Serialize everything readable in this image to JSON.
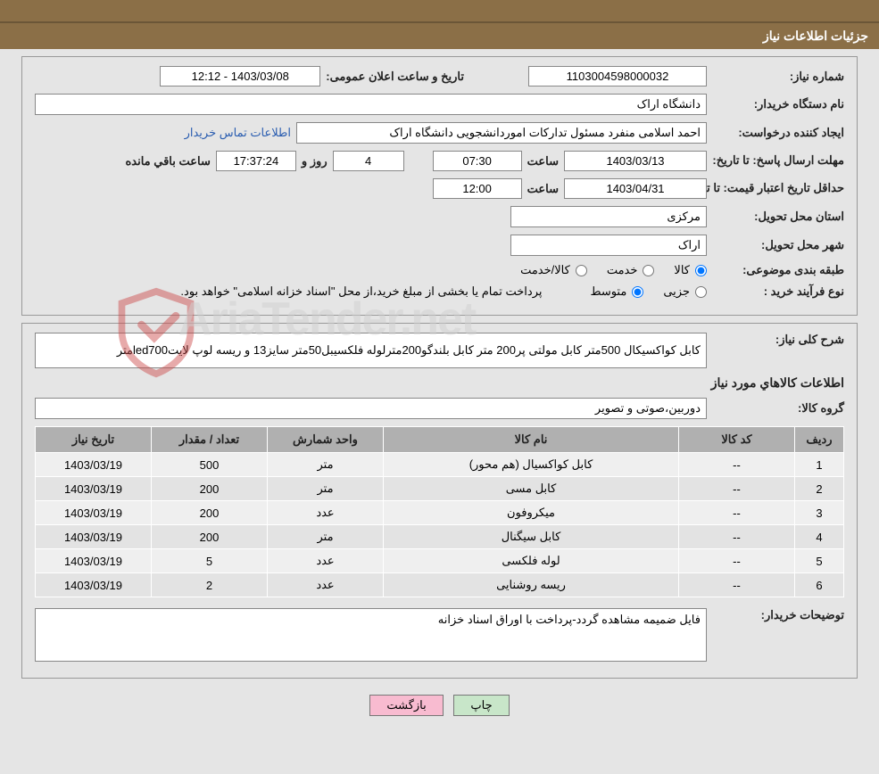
{
  "header": {
    "title": "جزئیات اطلاعات نیاز"
  },
  "info": {
    "need_number_label": "شماره نیاز:",
    "need_number": "1103004598000032",
    "announce_datetime_label": "تاریخ و ساعت اعلان عمومی:",
    "announce_datetime": "1403/03/08 - 12:12",
    "buyer_org_label": "نام دستگاه خریدار:",
    "buyer_org": "دانشگاه اراک",
    "requester_label": "ایجاد کننده درخواست:",
    "requester": "احمد  اسلامی منفرد مسئول تدارکات اموردانشجویی دانشگاه اراک",
    "contact_link": "اطلاعات تماس خریدار",
    "deadline_label": "مهلت ارسال پاسخ: تا تاریخ:",
    "deadline_date": "1403/03/13",
    "time_word": "ساعت",
    "deadline_time": "07:30",
    "days_count": "4",
    "days_and_word": "روز و",
    "countdown": "17:37:24",
    "remaining_word": "ساعت باقي مانده",
    "validity_label": "حداقل تاریخ اعتبار قیمت: تا تاریخ:",
    "validity_date": "1403/04/31",
    "validity_time": "12:00",
    "province_label": "استان محل تحویل:",
    "province": "مرکزی",
    "city_label": "شهر محل تحویل:",
    "city": "اراک",
    "category_label": "طبقه بندی موضوعی:",
    "cat_goods": "کالا",
    "cat_service": "خدمت",
    "cat_goods_service": "کالا/خدمت",
    "process_type_label": "نوع فرآیند خرید :",
    "proc_partial": "جزیی",
    "proc_medium": "متوسط",
    "process_note": "پرداخت تمام یا بخشی از مبلغ خرید،از محل \"اسناد خزانه اسلامی\" خواهد بود."
  },
  "detail": {
    "desc_label": "شرح کلی نیاز:",
    "desc": "کابل کواکسیکال 500متر کابل مولتی پر200 متر کابل بلندگو200مترلوله فلکسیبل50متر سایز13 و ریسه لوپ لایتled700متر",
    "items_title": "اطلاعات کالاهاي مورد نیاز",
    "group_label": "گروه کالا:",
    "group": "دوربین،صوتی و تصویر",
    "table": {
      "headers": {
        "row": "ردیف",
        "code": "کد کالا",
        "name": "نام کالا",
        "unit": "واحد شمارش",
        "qty": "تعداد / مقدار",
        "date": "تاریخ نیاز"
      },
      "rows": [
        {
          "n": "1",
          "code": "--",
          "name": "کابل کواکسیال (هم محور)",
          "unit": "متر",
          "qty": "500",
          "date": "1403/03/19"
        },
        {
          "n": "2",
          "code": "--",
          "name": "کابل مسی",
          "unit": "متر",
          "qty": "200",
          "date": "1403/03/19"
        },
        {
          "n": "3",
          "code": "--",
          "name": "میکروفون",
          "unit": "عدد",
          "qty": "200",
          "date": "1403/03/19"
        },
        {
          "n": "4",
          "code": "--",
          "name": "کابل سیگنال",
          "unit": "متر",
          "qty": "200",
          "date": "1403/03/19"
        },
        {
          "n": "5",
          "code": "--",
          "name": "لوله فلکسی",
          "unit": "عدد",
          "qty": "5",
          "date": "1403/03/19"
        },
        {
          "n": "6",
          "code": "--",
          "name": "ریسه روشنایی",
          "unit": "عدد",
          "qty": "2",
          "date": "1403/03/19"
        }
      ]
    },
    "buyer_note_label": "توضیحات خریدار:",
    "buyer_note": "فایل ضمیمه مشاهده گردد-پرداخت با اوراق اسناد خزانه"
  },
  "buttons": {
    "print": "چاپ",
    "back": "بازگشت"
  },
  "watermark": "AriaTender.net",
  "style": {
    "header_bg": "#8b6f47",
    "col_widths": {
      "row": "55px",
      "code": "130px",
      "name": "auto",
      "unit": "130px",
      "qty": "130px",
      "date": "130px"
    }
  }
}
